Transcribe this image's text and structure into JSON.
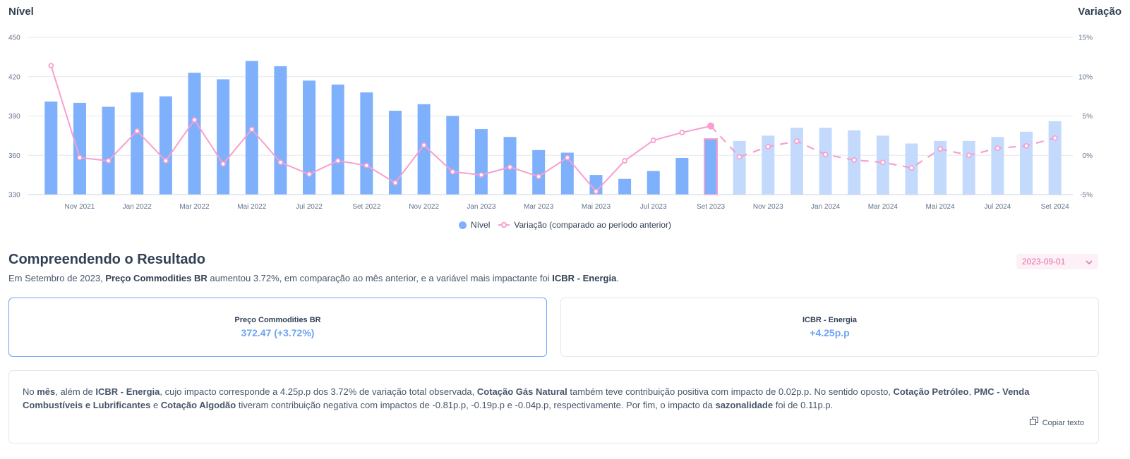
{
  "chart_data": {
    "type": "bar",
    "left_axis_title": "Nível",
    "right_axis_title": "Variação",
    "x_labels": [
      "Nov 2021",
      "Jan 2022",
      "Mar 2022",
      "Mai 2022",
      "Jul 2022",
      "Set 2022",
      "Nov 2022",
      "Jan 2023",
      "Mar 2023",
      "Mai 2023",
      "Jul 2023",
      "Set 2023",
      "Nov 2023",
      "Jan 2024",
      "Mar 2024",
      "Mai 2024",
      "Jul 2024",
      "Set 2024"
    ],
    "ylim_left": [
      330,
      450
    ],
    "yticks_left": [
      330,
      360,
      390,
      420,
      450
    ],
    "ylim_right": [
      -5,
      15
    ],
    "yticks_right": [
      "-5%",
      "0%",
      "5%",
      "10%",
      "15%"
    ],
    "series": [
      {
        "name": "Nível",
        "type": "bar",
        "color": "#7fb0fb",
        "forecast_color": "#c3dafd",
        "values": [
          401,
          400,
          397,
          408,
          405,
          423,
          418,
          432,
          428,
          417,
          414,
          408,
          394,
          399,
          390,
          380,
          374,
          364,
          362,
          345,
          342,
          348,
          358,
          372.47,
          371,
          375,
          381,
          381,
          379,
          375,
          369,
          371,
          371,
          374,
          378,
          386
        ]
      },
      {
        "name": "Variação (comparado ao período anterior)",
        "type": "line",
        "color": "#f6a0ce",
        "values": [
          11.4,
          -0.3,
          -0.7,
          3.1,
          -0.7,
          4.5,
          -1.1,
          3.3,
          -0.9,
          -2.4,
          -0.7,
          -1.3,
          -3.5,
          1.3,
          -2.1,
          -2.5,
          -1.5,
          -2.7,
          -0.3,
          -4.6,
          -0.7,
          1.9,
          2.9,
          3.72,
          -0.2,
          1.1,
          1.8,
          0.1,
          -0.6,
          -0.9,
          -1.6,
          0.8,
          0.0,
          0.9,
          1.2,
          2.2
        ]
      }
    ],
    "highlight_index": 23,
    "forecast_start_index": 24,
    "legend_position": "bottom-center"
  },
  "legend": {
    "nivel": "Nível",
    "variacao": "Variação (comparado ao período anterior)"
  },
  "colors": {
    "accent_blue": "#7fb0fb",
    "accent_pink": "#f6a0ce",
    "select_pink": "#e56ba7"
  },
  "section": {
    "title": "Compreendendo o Resultado",
    "date_value": "2023-09-01",
    "summary": {
      "part1": "Em Setembro de 2023, ",
      "bold1": "Preço Commodities BR",
      "part2": " aumentou 3.72%, em comparação ao mês anterior, e a variável mais impactante foi ",
      "bold2": "ICBR - Energia",
      "part3": "."
    }
  },
  "cards": [
    {
      "label": "Preço Commodities BR",
      "value": "372.47 (+3.72%)"
    },
    {
      "label": "ICBR - Energia",
      "value": "+4.25p.p"
    }
  ],
  "explanation": {
    "t1": "No ",
    "b1": "mês",
    "t2": ", além de ",
    "b2": "ICBR - Energia",
    "t3": ", cujo impacto corresponde a 4.25p.p dos 3.72% de variação total observada, ",
    "b3": "Cotação Gás Natural",
    "t4": " também teve contribuição positiva com impacto de 0.02p.p. No sentido oposto, ",
    "b4": "Cotação Petróleo",
    "t5": ", ",
    "b5": "PMC - Venda Combustíveis e Lubrificantes",
    "t6": " e ",
    "b6": "Cotação Algodão",
    "t7": " tiveram contribuição negativa com impactos de -0.81p.p, -0.19p.p e -0.04p.p, respectivamente. Por fim, o impacto da ",
    "b7": "sazonalidade",
    "t8": " foi de 0.11p.p."
  },
  "copy_button": {
    "label": "Copiar texto",
    "icon": "copy-icon"
  },
  "select_icon": "chevron-down-icon"
}
